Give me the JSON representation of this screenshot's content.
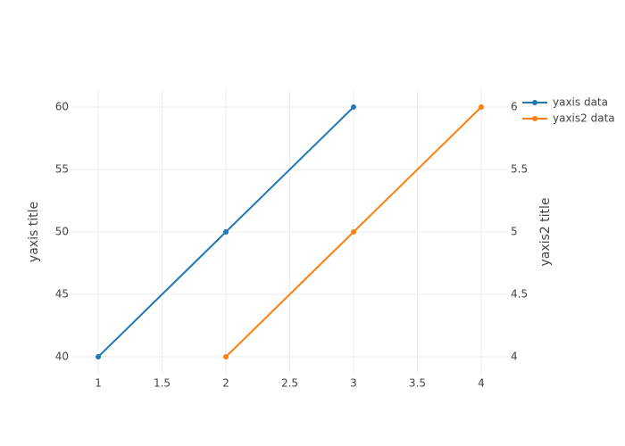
{
  "chart_data": {
    "type": "line",
    "yaxis_title": "yaxis title",
    "yaxis2_title": "yaxis2 title",
    "series": [
      {
        "name": "yaxis data",
        "color": "#1f77b4",
        "x": [
          1,
          2,
          3
        ],
        "values": [
          40,
          50,
          60
        ]
      },
      {
        "name": "yaxis2 data",
        "color": "#ff7f0e",
        "x": [
          2,
          3,
          4
        ],
        "values": [
          4,
          5,
          6
        ],
        "axis": "y2"
      }
    ],
    "xlim": [
      0.79,
      4.21
    ],
    "xticks": [
      1,
      1.5,
      2,
      2.5,
      3,
      3.5,
      4
    ],
    "ylim": [
      38.57,
      61.43
    ],
    "yticks": [
      40,
      45,
      50,
      55,
      60
    ],
    "y2lim": [
      3.857,
      6.143
    ],
    "y2ticks": [
      4,
      4.5,
      5,
      5.5,
      6
    ],
    "grid": true
  }
}
